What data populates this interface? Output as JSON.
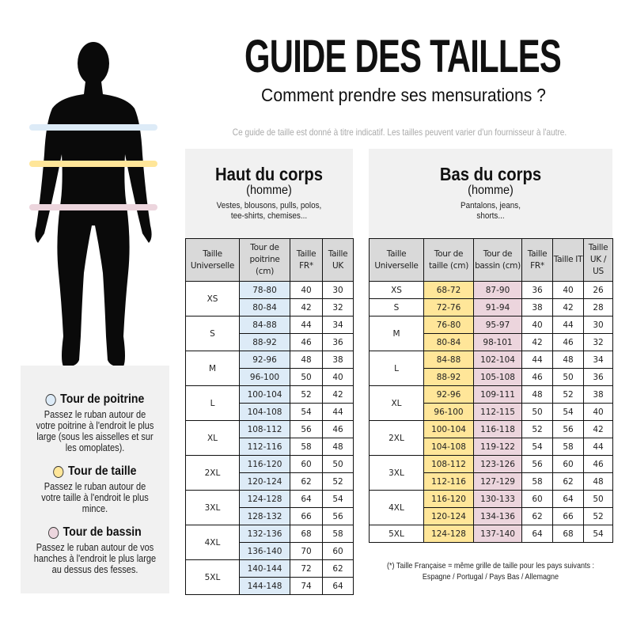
{
  "header": {
    "title": "GUIDE DES TAILLES",
    "subtitle": "Comment prendre ses mensurations ?",
    "disclaimer": "Ce guide de taille est donné à titre indicatif. Les tailles peuvent varier d'un fournisseur à l'autre."
  },
  "colors": {
    "chest": "#ddebf7",
    "waist": "#ffe699",
    "hip": "#ecd5dd",
    "header_gray": "#d9d9d9",
    "panel_gray": "#f1f1f1"
  },
  "legend": [
    {
      "title": "Tour de poitrine",
      "text": "Passez le ruban autour de votre poitrine à l'endroit le plus large (sous les aisselles et sur les omoplates).",
      "color": "#ddebf7"
    },
    {
      "title": "Tour de taille",
      "text": "Passez le ruban autour de votre taille à l'endroit le plus mince.",
      "color": "#ffe699"
    },
    {
      "title": "Tour de bassin",
      "text": "Passez le ruban autour de vos hanches à l'endroit le plus large au dessus des fesses.",
      "color": "#ecd5dd"
    }
  ],
  "top": {
    "title": "Haut du corps",
    "sub": "(homme)",
    "desc": "Vestes, blousons, pulls, polos, tee-shirts, chemises...",
    "columns": [
      "Taille Universelle",
      "Tour de poitrine (cm)",
      "Taille FR*",
      "Taille UK"
    ],
    "groups": [
      {
        "size": "XS",
        "rows": [
          [
            "78-80",
            "40",
            "30"
          ],
          [
            "80-84",
            "42",
            "32"
          ]
        ]
      },
      {
        "size": "S",
        "rows": [
          [
            "84-88",
            "44",
            "34"
          ],
          [
            "88-92",
            "46",
            "36"
          ]
        ]
      },
      {
        "size": "M",
        "rows": [
          [
            "92-96",
            "48",
            "38"
          ],
          [
            "96-100",
            "50",
            "40"
          ]
        ]
      },
      {
        "size": "L",
        "rows": [
          [
            "100-104",
            "52",
            "42"
          ],
          [
            "104-108",
            "54",
            "44"
          ]
        ]
      },
      {
        "size": "XL",
        "rows": [
          [
            "108-112",
            "56",
            "46"
          ],
          [
            "112-116",
            "58",
            "48"
          ]
        ]
      },
      {
        "size": "2XL",
        "rows": [
          [
            "116-120",
            "60",
            "50"
          ],
          [
            "120-124",
            "62",
            "52"
          ]
        ]
      },
      {
        "size": "3XL",
        "rows": [
          [
            "124-128",
            "64",
            "54"
          ],
          [
            "128-132",
            "66",
            "56"
          ]
        ]
      },
      {
        "size": "4XL",
        "rows": [
          [
            "132-136",
            "68",
            "58"
          ],
          [
            "136-140",
            "70",
            "60"
          ]
        ]
      },
      {
        "size": "5XL",
        "rows": [
          [
            "140-144",
            "72",
            "62"
          ],
          [
            "144-148",
            "74",
            "64"
          ]
        ]
      }
    ]
  },
  "bottom": {
    "title": "Bas du corps",
    "sub": "(homme)",
    "desc": "Pantalons, jeans, shorts...",
    "columns": [
      "Taille Universelle",
      "Tour de taille (cm)",
      "Tour de bassin (cm)",
      "Taille FR*",
      "Taille IT",
      "Taille UK / US"
    ],
    "groups": [
      {
        "size": "XS",
        "rows": [
          [
            "68-72",
            "87-90",
            "36",
            "40",
            "26"
          ]
        ]
      },
      {
        "size": "S",
        "rows": [
          [
            "72-76",
            "91-94",
            "38",
            "42",
            "28"
          ]
        ]
      },
      {
        "size": "M",
        "rows": [
          [
            "76-80",
            "95-97",
            "40",
            "44",
            "30"
          ],
          [
            "80-84",
            "98-101",
            "42",
            "46",
            "32"
          ]
        ]
      },
      {
        "size": "L",
        "rows": [
          [
            "84-88",
            "102-104",
            "44",
            "48",
            "34"
          ],
          [
            "88-92",
            "105-108",
            "46",
            "50",
            "36"
          ]
        ]
      },
      {
        "size": "XL",
        "rows": [
          [
            "92-96",
            "109-111",
            "48",
            "52",
            "38"
          ],
          [
            "96-100",
            "112-115",
            "50",
            "54",
            "40"
          ]
        ]
      },
      {
        "size": "2XL",
        "rows": [
          [
            "100-104",
            "116-118",
            "52",
            "56",
            "42"
          ],
          [
            "104-108",
            "119-122",
            "54",
            "58",
            "44"
          ]
        ]
      },
      {
        "size": "3XL",
        "rows": [
          [
            "108-112",
            "123-126",
            "56",
            "60",
            "46"
          ],
          [
            "112-116",
            "127-129",
            "58",
            "62",
            "48"
          ]
        ]
      },
      {
        "size": "4XL",
        "rows": [
          [
            "116-120",
            "130-133",
            "60",
            "64",
            "50"
          ],
          [
            "120-124",
            "134-136",
            "62",
            "66",
            "52"
          ]
        ]
      },
      {
        "size": "5XL",
        "rows": [
          [
            "124-128",
            "137-140",
            "64",
            "68",
            "54"
          ]
        ]
      }
    ]
  },
  "footnote": {
    "line1": "(*) Taille Française = même grille de taille pour les pays suivants :",
    "line2": "Espagne / Portugal / Pays Bas / Allemagne"
  }
}
